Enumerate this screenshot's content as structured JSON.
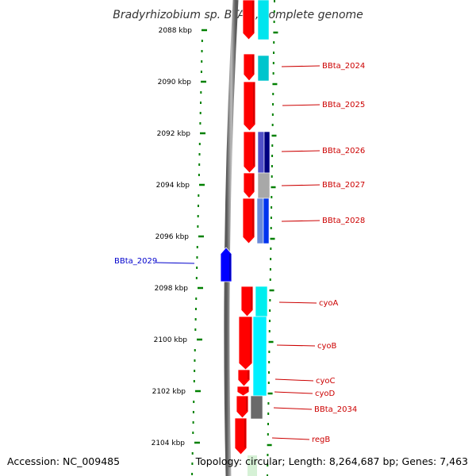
{
  "title": "Bradyrhizobium sp. BTAi1, complete genome",
  "footer": {
    "accession": "Accession: NC_009485",
    "topology": "Topology: circular; Length: 8,264,687 bp; Genes: 7,463"
  },
  "scale": {
    "unit": "kbp",
    "ticks": [
      "2088 kbp",
      "2090 kbp",
      "2092 kbp",
      "2094 kbp",
      "2096 kbp",
      "2098 kbp",
      "2100 kbp",
      "2102 kbp",
      "2104 kbp"
    ]
  },
  "colors": {
    "gene_arrow": "#ff0000",
    "axis_tick": "#008000",
    "backbone": "#888888",
    "label_right": "#cc0000",
    "label_left": "#0000cc"
  },
  "genes": [
    {
      "label": "BBta_2024",
      "strand": "+",
      "color": "#ff0000"
    },
    {
      "label": "BBta_2025",
      "strand": "+",
      "color": "#ff0000"
    },
    {
      "label": "BBta_2026",
      "strand": "+",
      "color": "#ff0000"
    },
    {
      "label": "BBta_2027",
      "strand": "+",
      "color": "#ff0000"
    },
    {
      "label": "BBta_2028",
      "strand": "+",
      "color": "#ff0000"
    },
    {
      "label": "BBta_2029",
      "strand": "-",
      "color": "#0000ff"
    },
    {
      "label": "cyoA",
      "strand": "+",
      "color": "#ff0000"
    },
    {
      "label": "cyoB",
      "strand": "+",
      "color": "#ff0000"
    },
    {
      "label": "cyoC",
      "strand": "+",
      "color": "#ff0000"
    },
    {
      "label": "cyoD",
      "strand": "+",
      "color": "#ff0000"
    },
    {
      "label": "BBta_2034",
      "strand": "+",
      "color": "#ff0000"
    },
    {
      "label": "regB",
      "strand": "+",
      "color": "#ff0000"
    }
  ]
}
